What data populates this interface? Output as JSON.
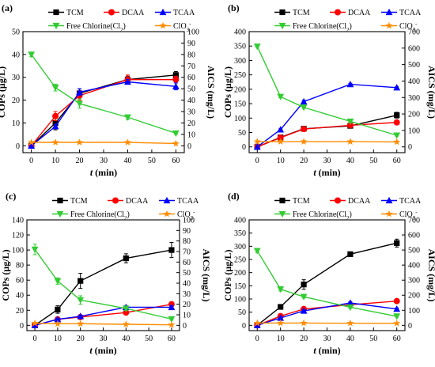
{
  "chart_data": [
    {
      "type": "line",
      "panel_label": "(a)",
      "xlabel_italic": "t",
      "xlabel_unit": " (min)",
      "ylabel": "COPs (μg/L)",
      "ylabel_right": "AICS (mg/L)",
      "x": [
        0,
        10,
        20,
        40,
        60
      ],
      "xticks": [
        0,
        10,
        20,
        30,
        40,
        50,
        60
      ],
      "xlim": [
        -3.5,
        63.5
      ],
      "ylim": [
        -3,
        50
      ],
      "yticks": [
        0,
        10,
        20,
        30,
        40,
        50
      ],
      "ylim_right": [
        -6,
        100
      ],
      "yticks_right": [
        0,
        10,
        20,
        30,
        40,
        50,
        60,
        70,
        80,
        90,
        100
      ],
      "series": [
        {
          "name": "TCM",
          "axis": "left",
          "color": "#000000",
          "marker": "square",
          "values": [
            0,
            10,
            23,
            29,
            31
          ],
          "errors": [
            1,
            3,
            2,
            1.5,
            1.5
          ]
        },
        {
          "name": "DCAA",
          "axis": "left",
          "color": "#ff0000",
          "marker": "circle",
          "values": [
            0,
            13,
            22,
            29,
            29
          ],
          "errors": [
            0.5,
            2,
            2,
            2,
            1.5
          ]
        },
        {
          "name": "TCAA",
          "axis": "right",
          "color": "#0000ff",
          "marker": "triangle-up",
          "values": [
            0,
            17,
            47,
            56,
            52
          ],
          "errors": [
            0.5,
            1.5,
            3,
            2,
            3
          ]
        },
        {
          "name": "Free Chlorine(Cl",
          "name_sub": "2",
          "name_tail": ")",
          "axis": "right",
          "color": "#33cc33",
          "marker": "triangle-down",
          "values": [
            80,
            51,
            37,
            25,
            11
          ],
          "errors": [
            2,
            3,
            4,
            2,
            1
          ]
        },
        {
          "name": "ClO",
          "name_sub": "3",
          "name_sup": "-",
          "axis": "right",
          "color": "#ff8c00",
          "marker": "star",
          "values": [
            3,
            3,
            3,
            3,
            2
          ],
          "errors": [
            0,
            0,
            0,
            0,
            0
          ]
        }
      ]
    },
    {
      "type": "line",
      "panel_label": "(b)",
      "xlabel_italic": "t",
      "xlabel_unit": " (min)",
      "ylabel": "COPs (μg/L)",
      "ylabel_right": "AICS (mg/L)",
      "x": [
        0,
        10,
        20,
        40,
        60
      ],
      "xticks": [
        0,
        10,
        20,
        30,
        40,
        50,
        60
      ],
      "xlim": [
        -3.5,
        63.5
      ],
      "ylim": [
        -20,
        400
      ],
      "yticks": [
        0,
        50,
        100,
        150,
        200,
        250,
        300,
        350,
        400
      ],
      "ylim_right": [
        -35,
        700
      ],
      "yticks_right": [
        0,
        100,
        200,
        300,
        400,
        500,
        600,
        700
      ],
      "series": [
        {
          "name": "TCM",
          "axis": "left",
          "color": "#000000",
          "marker": "square",
          "values": [
            0,
            33,
            63,
            73,
            110
          ],
          "errors": [
            2,
            3,
            5,
            5,
            10
          ]
        },
        {
          "name": "DCAA",
          "axis": "left",
          "color": "#ff0000",
          "marker": "circle",
          "values": [
            0,
            32,
            62,
            75,
            85
          ],
          "errors": [
            1,
            3,
            4,
            5,
            4
          ]
        },
        {
          "name": "TCAA",
          "axis": "right",
          "color": "#0000ff",
          "marker": "triangle-up",
          "values": [
            0,
            105,
            275,
            380,
            360
          ],
          "errors": [
            2,
            5,
            8,
            6,
            5
          ]
        },
        {
          "name": "Free Chlorine(Cl",
          "name_sub": "2",
          "name_tail": ")",
          "axis": "right",
          "color": "#33cc33",
          "marker": "triangle-down",
          "values": [
            610,
            305,
            240,
            155,
            70
          ],
          "errors": [
            5,
            6,
            6,
            5,
            4
          ]
        },
        {
          "name": "ClO",
          "name_sub": "3",
          "name_sup": "-",
          "axis": "right",
          "color": "#ff8c00",
          "marker": "star",
          "values": [
            32,
            32,
            32,
            32,
            30
          ],
          "errors": [
            0,
            0,
            0,
            0,
            0
          ]
        }
      ]
    },
    {
      "type": "line",
      "panel_label": "(c)",
      "xlabel_italic": "t",
      "xlabel_unit": " (min)",
      "ylabel": "COPs (μg/L)",
      "ylabel_right": "AICS (mg/L)",
      "x": [
        0,
        10,
        20,
        40,
        60
      ],
      "xticks": [
        0,
        10,
        20,
        30,
        40,
        50,
        60
      ],
      "xlim": [
        -3.5,
        63.5
      ],
      "ylim": [
        -7,
        140
      ],
      "yticks": [
        0,
        20,
        40,
        60,
        80,
        100,
        120,
        140
      ],
      "ylim_right": [
        -5,
        100
      ],
      "yticks_right": [
        0,
        10,
        20,
        30,
        40,
        50,
        60,
        70,
        80,
        90,
        100
      ],
      "series": [
        {
          "name": "TCM",
          "axis": "left",
          "color": "#000000",
          "marker": "square",
          "values": [
            0,
            21,
            59,
            89,
            100
          ],
          "errors": [
            1,
            5,
            10,
            6,
            10
          ]
        },
        {
          "name": "DCAA",
          "axis": "left",
          "color": "#ff0000",
          "marker": "circle",
          "values": [
            0,
            8,
            11,
            17,
            28
          ],
          "errors": [
            0.5,
            1.5,
            1.5,
            2,
            3
          ]
        },
        {
          "name": "TCAA",
          "axis": "left",
          "color": "#0000ff",
          "marker": "triangle-up",
          "values": [
            0,
            8,
            12,
            24,
            24
          ],
          "errors": [
            0.5,
            1,
            1,
            2,
            2
          ]
        },
        {
          "name": "Free Chlorine(Cl",
          "name_sub": "2",
          "name_tail": ")",
          "axis": "right",
          "color": "#33cc33",
          "marker": "triangle-down",
          "values": [
            72,
            42,
            24,
            16,
            6
          ],
          "errors": [
            5,
            3,
            4,
            2,
            1
          ]
        },
        {
          "name": "ClO",
          "name_sub": "3",
          "name_sup": "-",
          "axis": "right",
          "color": "#ff8c00",
          "marker": "star",
          "values": [
            2,
            1.5,
            1.5,
            1,
            0.5
          ],
          "errors": [
            0,
            0,
            0,
            0,
            0
          ]
        }
      ]
    },
    {
      "type": "line",
      "panel_label": "(d)",
      "xlabel_italic": "t",
      "xlabel_unit": " (min)",
      "ylabel": "COPs (μg/L)",
      "ylabel_right": "AICS (mg/L)",
      "x": [
        0,
        10,
        20,
        40,
        60
      ],
      "xticks": [
        0,
        10,
        20,
        30,
        40,
        50,
        60
      ],
      "xlim": [
        -3.5,
        63.5
      ],
      "ylim": [
        -20,
        400
      ],
      "yticks": [
        0,
        50,
        100,
        150,
        200,
        250,
        300,
        350,
        400
      ],
      "ylim_right": [
        -35,
        700
      ],
      "yticks_right": [
        0,
        100,
        200,
        300,
        400,
        500,
        600,
        700
      ],
      "series": [
        {
          "name": "TCM",
          "axis": "left",
          "color": "#000000",
          "marker": "square",
          "values": [
            0,
            70,
            155,
            270,
            312
          ],
          "errors": [
            2,
            8,
            18,
            8,
            15
          ]
        },
        {
          "name": "DCAA",
          "axis": "left",
          "color": "#ff0000",
          "marker": "circle",
          "values": [
            0,
            35,
            62,
            78,
            92
          ],
          "errors": [
            1,
            4,
            5,
            5,
            4
          ]
        },
        {
          "name": "TCAA",
          "axis": "left",
          "color": "#0000ff",
          "marker": "triangle-up",
          "values": [
            0,
            28,
            55,
            85,
            62
          ],
          "errors": [
            1,
            3,
            4,
            5,
            4
          ]
        },
        {
          "name": "Free Chlorine(Cl",
          "name_sub": "2",
          "name_tail": ")",
          "axis": "right",
          "color": "#33cc33",
          "marker": "triangle-down",
          "values": [
            495,
            240,
            190,
            120,
            60
          ],
          "errors": [
            12,
            12,
            8,
            6,
            5
          ]
        },
        {
          "name": "ClO",
          "name_sub": "3",
          "name_sup": "-",
          "axis": "right",
          "color": "#ff8c00",
          "marker": "star",
          "values": [
            15,
            15,
            15,
            14,
            13
          ],
          "errors": [
            0,
            0,
            0,
            0,
            0
          ]
        }
      ]
    }
  ]
}
